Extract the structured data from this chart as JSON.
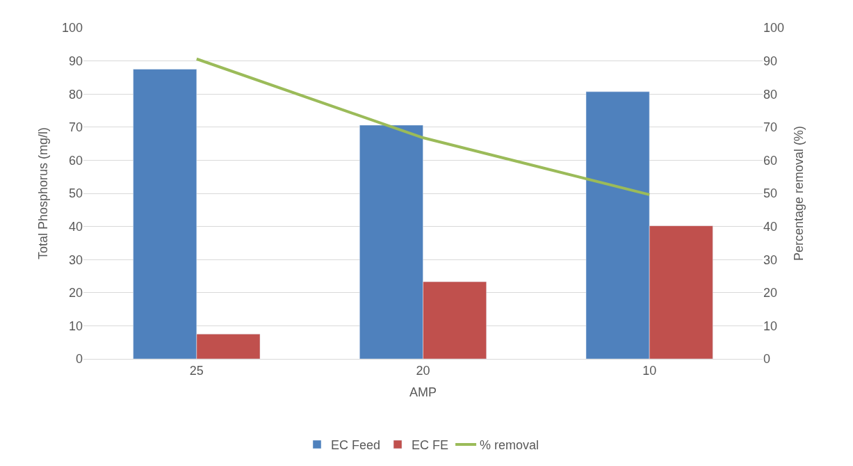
{
  "chart_data": {
    "type": "bar",
    "xlabel": "AMP",
    "ylabel": "Total Phosphorus (mg/l)",
    "y2label": "Percentage removal (%)",
    "categories": [
      "25",
      "20",
      "10"
    ],
    "series": [
      {
        "name": "EC Feed",
        "color": "#4f81bd",
        "values": [
          87.5,
          70.6,
          80.7
        ]
      },
      {
        "name": "EC FE",
        "color": "#c0504d",
        "values": [
          7.5,
          23.3,
          40.2
        ]
      },
      {
        "name": "% removal",
        "type": "line",
        "axis": "y2",
        "color": "#9bbb59",
        "values": [
          90.6,
          66.8,
          49.6
        ],
        "marker": "none"
      }
    ],
    "ylim": [
      0,
      100
    ],
    "yticks": [
      0,
      10,
      20,
      30,
      40,
      50,
      60,
      70,
      80,
      90,
      100
    ],
    "y2lim": [
      0,
      100
    ],
    "y2ticks": [
      0,
      10,
      20,
      30,
      40,
      50,
      60,
      70,
      80,
      90,
      100
    ],
    "grid": "y",
    "legend": "bottom"
  }
}
